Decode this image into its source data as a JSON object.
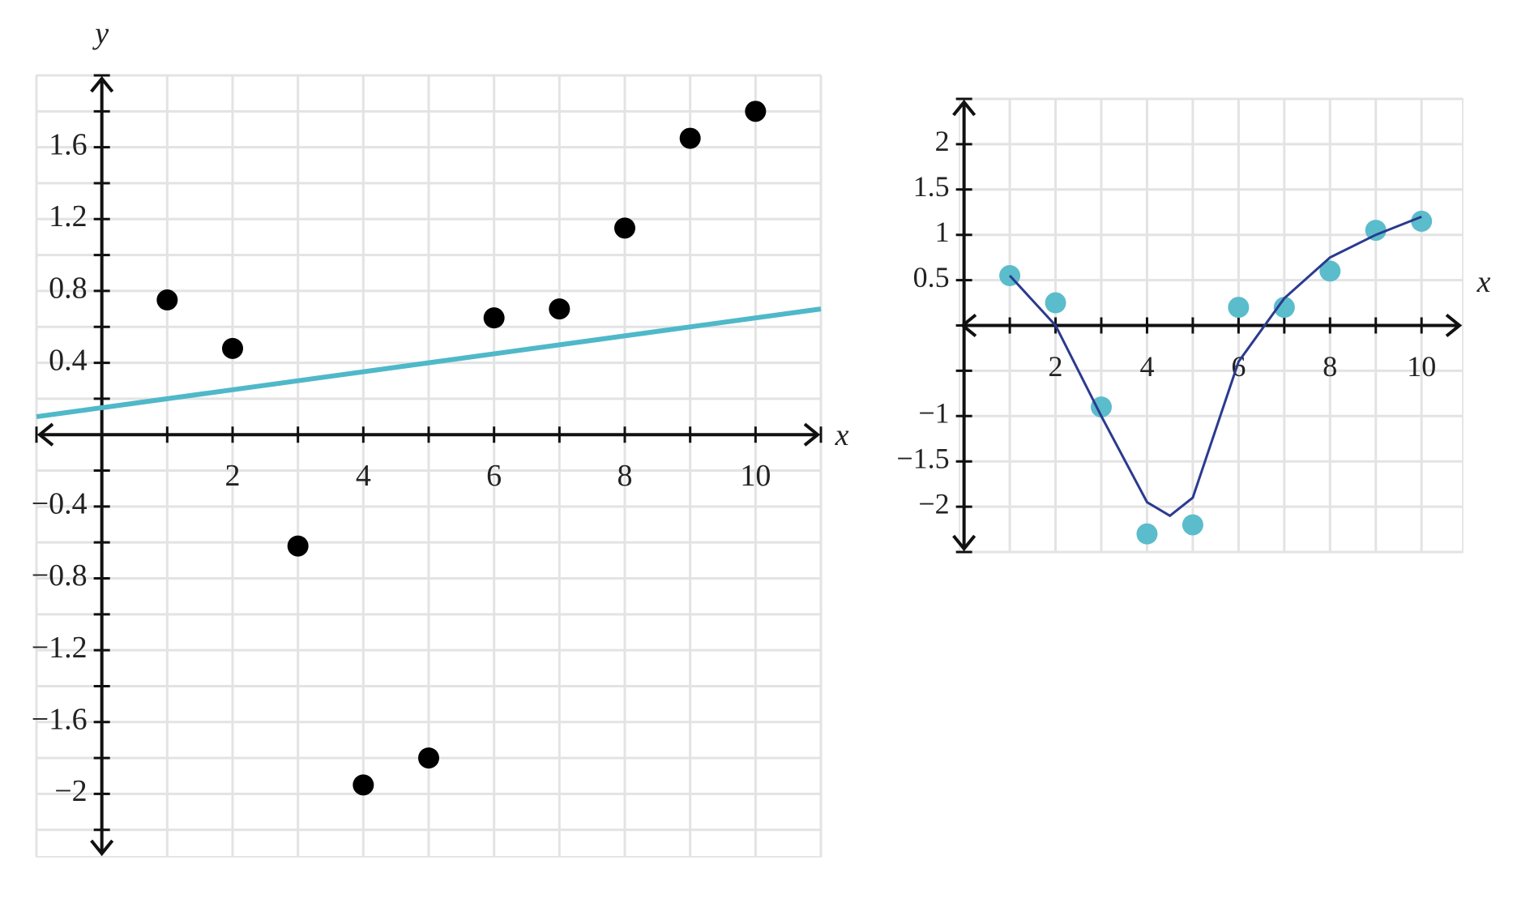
{
  "chart_data": [
    {
      "type": "scatter",
      "x_label": "x",
      "y_label": "y",
      "xlim": [
        -1,
        11
      ],
      "ylim": [
        -2.35,
        2
      ],
      "xticks": [
        2,
        4,
        6,
        8,
        10
      ],
      "yticks": [
        1.6,
        1.2,
        0.8,
        0.4,
        {
          "value": -0.4,
          "label": "−0.4"
        },
        {
          "value": -0.8,
          "label": "−0.8"
        },
        {
          "value": -1.2,
          "label": "−1.2"
        },
        {
          "value": -1.6,
          "label": "−1.6"
        },
        {
          "value": -2,
          "label": "−2"
        }
      ],
      "xgrid": [
        -1,
        0,
        1,
        2,
        3,
        4,
        5,
        6,
        7,
        8,
        9,
        10,
        11
      ],
      "ygrid": [
        -2.2,
        -2,
        -1.8,
        -1.6,
        -1.4,
        -1.2,
        -1,
        -0.8,
        -0.6,
        -0.4,
        -0.2,
        0,
        0.2,
        0.4,
        0.6,
        0.8,
        1,
        1.2,
        1.4,
        1.6,
        1.8,
        2
      ],
      "grid": true,
      "series": [
        {
          "type": "scatter",
          "color": "#000000",
          "x": [
            1,
            2,
            3,
            4,
            5,
            6,
            7,
            8,
            9,
            10
          ],
          "values": [
            0.75,
            0.48,
            -0.62,
            -1.95,
            -1.8,
            0.65,
            0.7,
            1.15,
            1.65,
            1.8
          ]
        },
        {
          "type": "line",
          "color": "#4fb8c9",
          "x": [
            -1,
            11
          ],
          "values": [
            0.1,
            0.7
          ]
        }
      ]
    },
    {
      "type": "scatter",
      "x_label": "x",
      "xlim": [
        -0.1,
        10.9
      ],
      "ylim": [
        -2.5,
        2.5
      ],
      "xticks": [
        2,
        4,
        6,
        8,
        10
      ],
      "yticks": [
        2,
        1.5,
        1,
        0.5,
        {
          "value": -1,
          "label": "−1"
        },
        {
          "value": -1.5,
          "label": "−1.5"
        },
        {
          "value": -2,
          "label": "−2"
        }
      ],
      "xgrid": [
        0,
        1,
        2,
        3,
        4,
        5,
        6,
        7,
        8,
        9,
        10
      ],
      "ygrid": [
        -2.5,
        -2,
        -1.5,
        -1,
        -0.5,
        0,
        0.5,
        1,
        1.5,
        2,
        2.5
      ],
      "grid": true,
      "series": [
        {
          "type": "scatter",
          "color": "#5bbccc",
          "x": [
            1,
            2,
            3,
            4,
            5,
            6,
            7,
            8,
            9,
            10
          ],
          "values": [
            0.55,
            0.25,
            -0.9,
            -2.3,
            -2.2,
            0.2,
            0.2,
            0.6,
            1.05,
            1.15
          ]
        },
        {
          "type": "line",
          "color": "#2b3a8f",
          "x": [
            1,
            2,
            3,
            4,
            4.5,
            5,
            6,
            7,
            8,
            9,
            10
          ],
          "values": [
            0.55,
            0.0,
            -1.0,
            -1.95,
            -2.1,
            -1.9,
            -0.4,
            0.3,
            0.75,
            1.0,
            1.2
          ]
        }
      ]
    }
  ]
}
